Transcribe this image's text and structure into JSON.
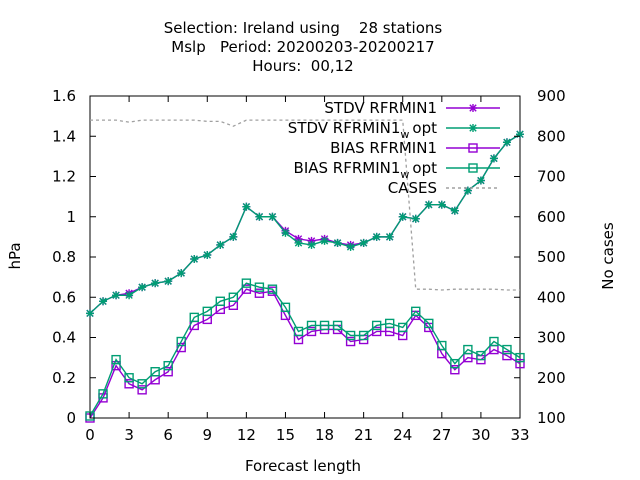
{
  "chart_data": {
    "type": "line",
    "title_lines": [
      "Selection: Ireland using    28 stations",
      "Mslp   Period: 20200203-20200217",
      "Hours:  00,12"
    ],
    "xlabel": "Forecast length",
    "ylabel": "hPa",
    "y2label": "No cases",
    "xlim": [
      0,
      33
    ],
    "ylim": [
      0,
      1.6
    ],
    "y2lim": [
      100,
      900
    ],
    "xticks": [
      "0",
      "3",
      "6",
      "9",
      "12",
      "15",
      "18",
      "21",
      "24",
      "27",
      "30",
      "33"
    ],
    "yticks": [
      "0",
      "0.2",
      "0.4",
      "0.6",
      "0.8",
      "1",
      "1.2",
      "1.4",
      "1.6"
    ],
    "y2ticks": [
      "100",
      "200",
      "300",
      "400",
      "500",
      "600",
      "700",
      "800",
      "900"
    ],
    "grid": false,
    "legend_position": "top-right",
    "x": [
      0,
      1,
      2,
      3,
      4,
      5,
      6,
      7,
      8,
      9,
      10,
      11,
      12,
      13,
      14,
      15,
      16,
      17,
      18,
      19,
      20,
      21,
      22,
      23,
      24,
      25,
      26,
      27,
      28,
      29,
      30,
      31,
      32,
      33
    ],
    "series": [
      {
        "name": "STDV RFRMIN1",
        "axis": "y",
        "color": "#9400d3",
        "marker": "star",
        "values": [
          0.52,
          0.58,
          0.61,
          0.62,
          0.65,
          0.67,
          0.68,
          0.72,
          0.79,
          0.81,
          0.86,
          0.9,
          1.05,
          1.0,
          1.0,
          0.93,
          0.89,
          0.88,
          0.89,
          0.87,
          0.86,
          0.87,
          0.9,
          0.9,
          1.0,
          0.99,
          1.06,
          1.06,
          1.03,
          1.13,
          1.18,
          1.29,
          1.37,
          1.41
        ]
      },
      {
        "name": "STDV RFRMIN1_w_opt",
        "axis": "y",
        "color": "#009e73",
        "marker": "star",
        "values": [
          0.52,
          0.58,
          0.61,
          0.61,
          0.65,
          0.67,
          0.68,
          0.72,
          0.79,
          0.81,
          0.86,
          0.9,
          1.05,
          1.0,
          1.0,
          0.92,
          0.87,
          0.86,
          0.88,
          0.87,
          0.85,
          0.87,
          0.9,
          0.9,
          1.0,
          0.99,
          1.06,
          1.06,
          1.03,
          1.13,
          1.18,
          1.29,
          1.37,
          1.41
        ]
      },
      {
        "name": "BIAS RFRMIN1",
        "axis": "y",
        "color": "#9400d3",
        "marker": "square",
        "values": [
          0.0,
          0.1,
          0.26,
          0.17,
          0.14,
          0.19,
          0.23,
          0.35,
          0.46,
          0.49,
          0.54,
          0.56,
          0.64,
          0.62,
          0.63,
          0.51,
          0.39,
          0.43,
          0.44,
          0.44,
          0.38,
          0.39,
          0.43,
          0.43,
          0.41,
          0.51,
          0.45,
          0.32,
          0.24,
          0.3,
          0.29,
          0.34,
          0.31,
          0.27
        ]
      },
      {
        "name": "BIAS RFRMIN1_w_opt",
        "axis": "y",
        "color": "#009e73",
        "marker": "square",
        "values": [
          0.01,
          0.12,
          0.29,
          0.2,
          0.17,
          0.23,
          0.26,
          0.38,
          0.5,
          0.53,
          0.58,
          0.6,
          0.67,
          0.65,
          0.64,
          0.55,
          0.43,
          0.46,
          0.46,
          0.46,
          0.41,
          0.41,
          0.46,
          0.47,
          0.45,
          0.53,
          0.47,
          0.36,
          0.27,
          0.34,
          0.31,
          0.38,
          0.34,
          0.3
        ]
      },
      {
        "name": "CASES",
        "axis": "y2",
        "color": "#a0a0a0",
        "marker": "none",
        "dashed": true,
        "values": [
          840,
          840,
          840,
          835,
          840,
          840,
          840,
          840,
          840,
          837,
          837,
          825,
          840,
          840,
          840,
          840,
          840,
          840,
          840,
          840,
          840,
          840,
          840,
          840,
          840,
          420,
          420,
          418,
          420,
          420,
          420,
          420,
          418,
          418
        ]
      }
    ]
  }
}
